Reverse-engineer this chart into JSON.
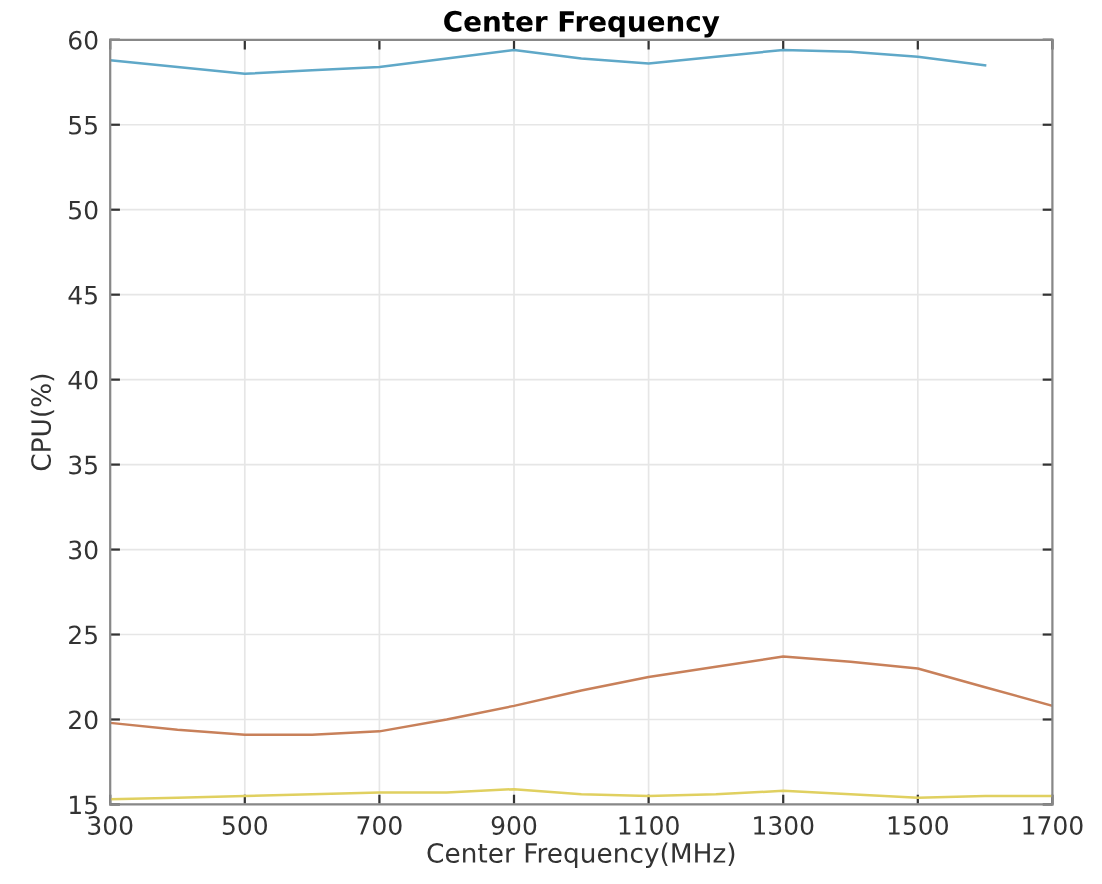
{
  "chart_data": {
    "type": "line",
    "title": "Center Frequency",
    "xlabel": "Center Frequency(MHz)",
    "ylabel": "CPU(%)",
    "x": [
      300,
      400,
      500,
      600,
      700,
      800,
      900,
      1000,
      1100,
      1200,
      1300,
      1400,
      1500,
      1600,
      1700
    ],
    "series": [
      {
        "color": "#5fa8c8",
        "values": [
          58.8,
          58.4,
          58.0,
          58.2,
          58.4,
          58.9,
          59.4,
          58.9,
          58.6,
          59.0,
          59.4,
          59.3,
          59.0,
          58.5,
          null
        ]
      },
      {
        "color": "#c8805a",
        "values": [
          19.8,
          19.4,
          19.1,
          19.1,
          19.3,
          20.0,
          20.8,
          21.7,
          22.5,
          23.1,
          23.7,
          23.4,
          23.0,
          21.9,
          20.8
        ]
      },
      {
        "color": "#e0d060",
        "values": [
          15.3,
          15.4,
          15.5,
          15.6,
          15.7,
          15.7,
          15.9,
          15.6,
          15.5,
          15.6,
          15.8,
          15.6,
          15.4,
          15.5,
          15.5
        ]
      }
    ],
    "xlim": [
      300,
      1700
    ],
    "ylim": [
      15,
      60
    ],
    "xticks": [
      300,
      500,
      700,
      900,
      1100,
      1300,
      1500,
      1700
    ],
    "yticks": [
      15,
      20,
      25,
      30,
      35,
      40,
      45,
      50,
      55,
      60
    ],
    "grid": true
  }
}
